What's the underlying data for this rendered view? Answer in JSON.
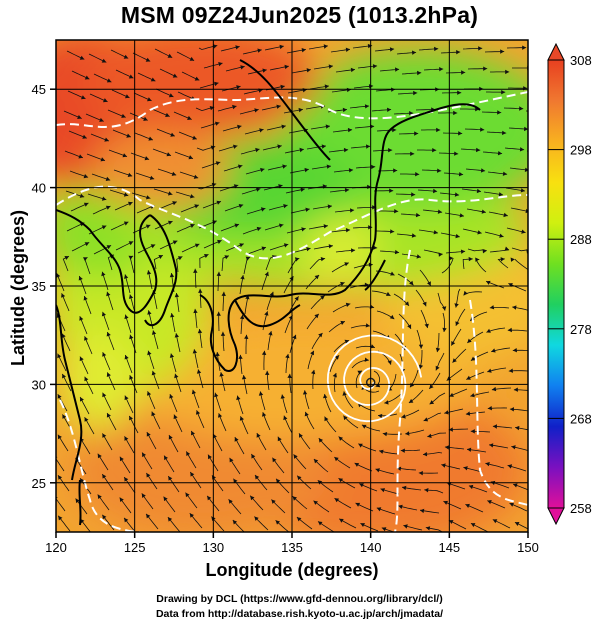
{
  "title": "MSM 09Z24Jun2025 (1013.2hPa)",
  "map": {
    "xlabel": "Longitude (degrees)",
    "ylabel": "Latitude  (degrees)",
    "lon_range": [
      120,
      150
    ],
    "lat_range": [
      22.5,
      47.5
    ],
    "x_ticks": [
      "120",
      "125",
      "130",
      "135",
      "140",
      "145",
      "150"
    ],
    "y_ticks": [
      "25",
      "30",
      "35",
      "40",
      "45"
    ],
    "grid": true
  },
  "colorbar": {
    "ticks": [
      "308",
      "298",
      "288",
      "278",
      "268",
      "258"
    ],
    "range": [
      258,
      308
    ],
    "colors": [
      "#e0109a",
      "#7a10c0",
      "#1020c8",
      "#1080f0",
      "#10d8e0",
      "#20d060",
      "#70e020",
      "#d0f010",
      "#f8e010",
      "#f8b020",
      "#f07830",
      "#e84020"
    ]
  },
  "typhoon_center": {
    "lon": 140.0,
    "lat": 30.1
  },
  "credits": {
    "line1": "Drawing by DCL (https://www.gfd-dennou.org/library/dcl/)",
    "line2": "Data from http://database.rish.kyoto-u.ac.jp/arch/jmadata/"
  }
}
